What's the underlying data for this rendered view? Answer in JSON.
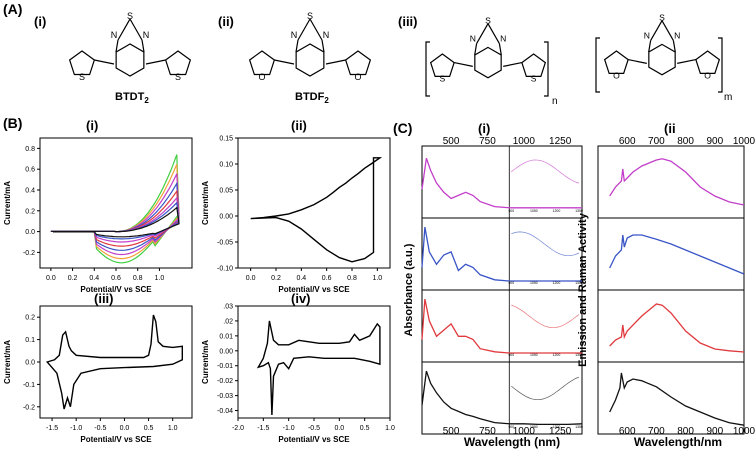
{
  "panel_A": {
    "label": "(A)",
    "sub": [
      {
        "label": "(i)",
        "name": "BTDT",
        "sub": "2"
      },
      {
        "label": "(ii)",
        "name": "BTDF",
        "sub": "2"
      },
      {
        "label": "(iii)",
        "n": "n",
        "m": "m"
      }
    ]
  },
  "atoms": {
    "S": "S",
    "N": "N",
    "O": "O"
  },
  "panel_B": {
    "label": "(B)",
    "sub_labels": [
      "(i)",
      "(ii)",
      "(iii)",
      "(iv)"
    ],
    "ylabel": "Current/mA",
    "xlabel": "Potential/V vs SCE"
  },
  "panel_C": {
    "label": "(C)",
    "sub_labels": [
      "(i)",
      "(ii"
    ],
    "ylabel_left": "Absorbance (a.u.)",
    "ylabel_right": "Emission and Raman Activity",
    "xlabel_left": "Wavelength (nm)",
    "xlabel_right": "Wavelength/nm"
  },
  "colors": {
    "magenta": "#c23ec9",
    "blue": "#3955c6",
    "red": "#e03a3e",
    "black": "#111111",
    "green": "#3fcf3f",
    "orange": "#f2a23a"
  },
  "chart_data": [
    {
      "type": "line",
      "id": "B-i",
      "xlabel": "Potential/V vs SCE",
      "ylabel": "Current/mA",
      "xlim": [
        -0.1,
        1.3
      ],
      "ylim": [
        -0.35,
        0.9
      ],
      "x_ticks": [
        "0.0",
        "0.2",
        "0.4",
        "0.6",
        "0.8",
        "1.0"
      ],
      "y_ticks": [
        "-0.2",
        "0.0",
        "0.2",
        "0.4",
        "0.6",
        "0.8"
      ],
      "series_peaks": [
        0.8,
        0.7,
        0.6,
        0.5,
        0.42,
        0.35,
        0.3,
        0.25
      ],
      "series_cathodic": [
        -0.3,
        -0.26,
        -0.22,
        -0.18,
        -0.14,
        -0.1,
        -0.07,
        -0.05
      ],
      "series_colors": [
        "#3fcf3f",
        "#f2a23a",
        "#c23ec9",
        "#3955c6",
        "#e03a3e",
        "#c23ec9",
        "#3955c6",
        "#111111"
      ]
    },
    {
      "type": "line",
      "id": "B-ii",
      "xlabel": "Potential/V vs SCE",
      "ylabel": "Current/mA",
      "xlim": [
        -0.1,
        1.1
      ],
      "ylim": [
        -0.1,
        0.15
      ],
      "x_ticks": [
        "0.0",
        "0.2",
        "0.4",
        "0.6",
        "0.8",
        "1.0"
      ],
      "y_ticks": [
        "-0.10",
        "-0.05",
        "0.00",
        "0.05",
        "0.10",
        "0.15"
      ],
      "x": [
        0.0,
        0.1,
        0.2,
        0.3,
        0.4,
        0.5,
        0.6,
        0.7,
        0.8,
        0.9,
        0.97,
        0.97,
        1.02,
        1.02,
        0.95,
        0.9,
        0.85,
        0.8,
        0.75,
        0.7,
        0.65,
        0.6,
        0.5,
        0.4,
        0.3,
        0.2,
        0.1,
        0.0
      ],
      "y": [
        -0.005,
        -0.004,
        -0.003,
        -0.01,
        -0.025,
        -0.045,
        -0.065,
        -0.08,
        -0.088,
        -0.082,
        -0.07,
        0.112,
        0.112,
        0.112,
        0.1,
        0.092,
        0.082,
        0.073,
        0.063,
        0.055,
        0.045,
        0.036,
        0.022,
        0.012,
        0.004,
        0.0,
        -0.003,
        -0.005
      ]
    },
    {
      "type": "line",
      "id": "B-iii",
      "xlabel": "Potential/V vs SCE",
      "ylabel": "Current/mA",
      "xlim": [
        -1.75,
        1.4
      ],
      "ylim": [
        -0.25,
        0.25
      ],
      "x_ticks": [
        "-1.5",
        "-1.0",
        "-0.5",
        "0.0",
        "0.5",
        "1.0"
      ],
      "y_ticks": [
        "-0.2",
        "-0.1",
        "0.0",
        "0.1",
        "0.2"
      ],
      "x": [
        -1.6,
        -1.45,
        -1.35,
        -1.28,
        -1.22,
        -1.15,
        -1.1,
        -1.0,
        -0.5,
        0.0,
        0.4,
        0.5,
        0.55,
        0.6,
        0.65,
        0.7,
        0.8,
        1.0,
        1.2,
        1.2,
        1.0,
        0.6,
        0.0,
        -0.5,
        -0.9,
        -1.05,
        -1.12,
        -1.18,
        -1.25,
        -1.3,
        -1.4,
        -1.6
      ],
      "y": [
        0.0,
        0.01,
        0.03,
        0.12,
        0.135,
        0.07,
        0.05,
        0.03,
        0.02,
        0.02,
        0.02,
        0.03,
        0.08,
        0.21,
        0.18,
        0.09,
        0.07,
        0.065,
        0.07,
        0.01,
        -0.01,
        -0.02,
        -0.025,
        -0.03,
        -0.05,
        -0.1,
        -0.2,
        -0.16,
        -0.21,
        -0.14,
        -0.05,
        0.0
      ]
    },
    {
      "type": "line",
      "id": "B-iv",
      "xlabel": "Potential/V vs SCE",
      "ylabel": "Current/mA",
      "xlim": [
        -2.0,
        1.0
      ],
      "ylim": [
        -0.045,
        0.03
      ],
      "x_ticks": [
        "-2.0",
        "-1.5",
        "-1.0",
        "-0.5",
        "0.0",
        "0.5",
        "1.0"
      ],
      "y_ticks": [
        ".03",
        ".02",
        "0.01",
        "0.00",
        "-0.01",
        "-0.02",
        "-0.03",
        "-0.04"
      ],
      "x": [
        -1.6,
        -1.5,
        -1.42,
        -1.38,
        -1.3,
        -1.2,
        -1.0,
        -0.8,
        -0.6,
        -0.4,
        -0.2,
        0.0,
        0.2,
        0.3,
        0.4,
        0.6,
        0.75,
        0.8,
        0.8,
        0.6,
        0.3,
        0.0,
        -0.3,
        -0.6,
        -0.9,
        -1.0,
        -1.1,
        -1.2,
        -1.3,
        -1.33,
        -1.36,
        -1.4,
        -1.5,
        -1.6
      ],
      "y": [
        -0.011,
        -0.005,
        0.005,
        0.02,
        0.007,
        0.004,
        0.004,
        0.007,
        0.006,
        0.005,
        0.005,
        0.005,
        0.006,
        0.011,
        0.007,
        0.01,
        0.018,
        0.016,
        -0.009,
        -0.007,
        -0.005,
        -0.005,
        -0.005,
        -0.004,
        -0.005,
        -0.012,
        -0.008,
        -0.009,
        -0.017,
        -0.043,
        -0.012,
        -0.008,
        -0.01,
        -0.011
      ]
    },
    {
      "type": "line",
      "id": "C-i",
      "xlabel": "Wavelength (nm)",
      "ylabel": "Absorbance (a.u.)",
      "xlim": [
        300,
        1400
      ],
      "x_ticks": [
        "500",
        "750",
        "1000",
        "1250"
      ],
      "inset_ticks": [
        "900",
        "1050",
        "1200",
        "1350"
      ],
      "series": [
        {
          "color": "#c23ec9",
          "x": [
            300,
            330,
            360,
            400,
            450,
            500,
            550,
            600,
            650,
            700,
            800,
            900,
            1000,
            1100,
            1200,
            1300,
            1400
          ],
          "y": [
            0.4,
            0.9,
            0.7,
            0.5,
            0.35,
            0.25,
            0.3,
            0.35,
            0.3,
            0.2,
            0.12,
            0.1,
            0.1,
            0.1,
            0.1,
            0.1,
            0.1
          ]
        },
        {
          "color": "#3955c6",
          "x": [
            300,
            320,
            350,
            400,
            450,
            500,
            550,
            600,
            650,
            700,
            800,
            900,
            1000,
            1100,
            1200,
            1300,
            1400
          ],
          "y": [
            0.3,
            0.95,
            0.55,
            0.35,
            0.5,
            0.55,
            0.25,
            0.35,
            0.3,
            0.18,
            0.1,
            0.08,
            0.08,
            0.08,
            0.08,
            0.08,
            0.08
          ]
        },
        {
          "color": "#e03a3e",
          "x": [
            300,
            320,
            350,
            400,
            450,
            500,
            550,
            600,
            650,
            700,
            800,
            900,
            1000,
            1100,
            1200,
            1300,
            1400
          ],
          "y": [
            0.3,
            0.95,
            0.6,
            0.35,
            0.45,
            0.55,
            0.35,
            0.35,
            0.3,
            0.15,
            0.1,
            0.08,
            0.08,
            0.08,
            0.08,
            0.08,
            0.08
          ]
        },
        {
          "color": "#111111",
          "x": [
            300,
            330,
            360,
            400,
            450,
            500,
            550,
            600,
            650,
            700,
            800,
            900,
            1000,
            1100,
            1200,
            1300,
            1400
          ],
          "y": [
            0.4,
            0.95,
            0.75,
            0.6,
            0.45,
            0.35,
            0.3,
            0.25,
            0.22,
            0.18,
            0.12,
            0.1,
            0.1,
            0.09,
            0.09,
            0.09,
            0.1
          ]
        }
      ]
    },
    {
      "type": "line",
      "id": "C-ii",
      "xlabel": "Wavelength/nm",
      "ylabel": "Emission and Raman Activity",
      "xlim": [
        500,
        1000
      ],
      "x_ticks": [
        "600",
        "700",
        "800",
        "900",
        "1000"
      ],
      "series": [
        {
          "color": "#c23ec9",
          "x": [
            540,
            560,
            580,
            585,
            590,
            600,
            620,
            650,
            700,
            720,
            750,
            800,
            850,
            900,
            950,
            1000
          ],
          "y": [
            0.3,
            0.45,
            0.55,
            0.75,
            0.55,
            0.6,
            0.7,
            0.8,
            0.9,
            0.92,
            0.88,
            0.7,
            0.45,
            0.3,
            0.2,
            0.15
          ]
        },
        {
          "color": "#3955c6",
          "x": [
            540,
            560,
            580,
            585,
            590,
            600,
            620,
            650,
            700,
            750,
            800,
            850,
            900,
            950,
            1000
          ],
          "y": [
            0.3,
            0.5,
            0.6,
            0.85,
            0.65,
            0.8,
            0.85,
            0.85,
            0.78,
            0.7,
            0.6,
            0.5,
            0.4,
            0.3,
            0.2
          ]
        },
        {
          "color": "#e03a3e",
          "x": [
            540,
            560,
            580,
            585,
            590,
            600,
            650,
            700,
            720,
            750,
            800,
            850,
            900,
            950,
            1000
          ],
          "y": [
            0.2,
            0.3,
            0.35,
            0.55,
            0.35,
            0.45,
            0.7,
            0.9,
            0.88,
            0.75,
            0.45,
            0.25,
            0.15,
            0.12,
            0.1
          ]
        },
        {
          "color": "#111111",
          "x": [
            540,
            560,
            575,
            580,
            590,
            600,
            620,
            650,
            700,
            750,
            800,
            850,
            900,
            950,
            1000
          ],
          "y": [
            0.3,
            0.5,
            0.7,
            0.95,
            0.7,
            0.8,
            0.85,
            0.82,
            0.72,
            0.55,
            0.4,
            0.3,
            0.2,
            0.12,
            0.08
          ]
        }
      ]
    }
  ]
}
